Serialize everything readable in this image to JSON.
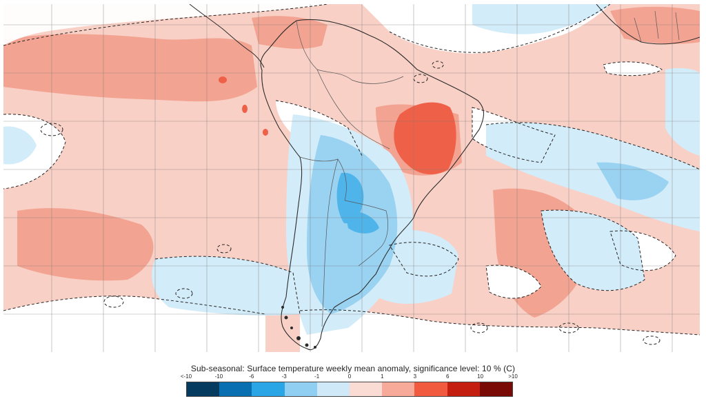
{
  "legend": {
    "title": "Sub-seasonal: Surface temperature weekly mean anomaly, significance level: 10 % (C)",
    "ticks": [
      "<-10",
      "-10",
      "-6",
      "-3",
      "-1",
      "0",
      "1",
      "3",
      "6",
      "10",
      ">10"
    ],
    "colors": [
      "#053b5f",
      "#0a6fb0",
      "#2aa6e6",
      "#90cff2",
      "#cfe9f8",
      "#fbdcd4",
      "#f7a99a",
      "#f15a3e",
      "#c41e10",
      "#7a0a05"
    ]
  },
  "map": {
    "colors": {
      "background_anomaly": "#f9d0c6",
      "warm_moderate": "#f3a391",
      "warm_strong": "#ef6048",
      "cool_light": "#d3ecf9",
      "cool_moderate": "#9ad2f1",
      "cool_strong": "#4fb4ea",
      "not_significant": "#ffffff",
      "coastline": "#2b2b2b",
      "borders": "#555555",
      "grid": "#7a7a7a"
    }
  }
}
